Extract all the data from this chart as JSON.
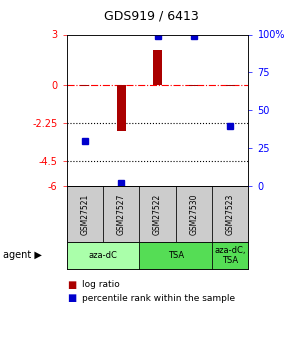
{
  "title": "GDS919 / 6413",
  "samples": [
    "GSM27521",
    "GSM27527",
    "GSM27522",
    "GSM27530",
    "GSM27523"
  ],
  "log_ratio": [
    -0.05,
    -2.7,
    2.1,
    -0.05,
    -0.05
  ],
  "percentile_rank": [
    30,
    2,
    99,
    99,
    40
  ],
  "bar_color": "#aa0000",
  "dot_color": "#0000cc",
  "ylim_left": [
    -6,
    3
  ],
  "ylim_right": [
    0,
    100
  ],
  "yticks_left": [
    3,
    0,
    -2.25,
    -4.5,
    -6
  ],
  "yticks_right": [
    100,
    75,
    50,
    25,
    0
  ],
  "ytick_labels_left": [
    "3",
    "0",
    "-2.25",
    "-4.5",
    "-6"
  ],
  "ytick_labels_right": [
    "100%",
    "75",
    "50",
    "25",
    "0"
  ],
  "hline_y": [
    0,
    -2.25,
    -4.5
  ],
  "agent_groups": [
    {
      "label": "aza-dC",
      "samples": [
        "GSM27521",
        "GSM27527"
      ],
      "color": "#aaffaa"
    },
    {
      "label": "TSA",
      "samples": [
        "GSM27522",
        "GSM27530"
      ],
      "color": "#55dd55"
    },
    {
      "label": "aza-dC,\nTSA",
      "samples": [
        "GSM27523"
      ],
      "color": "#55dd55"
    }
  ],
  "background_color": "#ffffff"
}
